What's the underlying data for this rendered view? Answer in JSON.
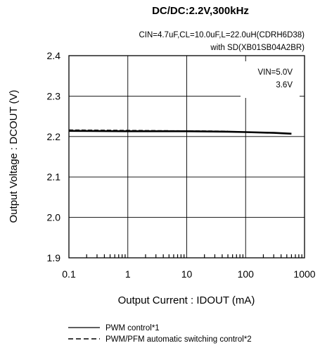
{
  "chart_data": {
    "type": "line",
    "title": "DC/DC:2.2V,300kHz",
    "subtitle_lines": [
      "CIN=4.7uF,CL=10.0uF,L=22.0uH(CDRH6D38)",
      "with SD(XB01SB04A2BR)"
    ],
    "xlabel": "Output Current : IDOUT (mA)",
    "ylabel": "Output Voltage : DCOUT (V)",
    "x_scale": "log",
    "xlim": [
      0.1,
      1000
    ],
    "ylim": [
      1.9,
      2.4
    ],
    "x_ticks": [
      0.1,
      1,
      10,
      100,
      1000
    ],
    "x_tick_labels": [
      "0.1",
      "1",
      "10",
      "100",
      "1000"
    ],
    "y_ticks": [
      1.9,
      2.0,
      2.1,
      2.2,
      2.3,
      2.4
    ],
    "y_tick_labels": [
      "1.9",
      "2.0",
      "2.1",
      "2.2",
      "2.3",
      "2.4"
    ],
    "grid": true,
    "annotation_lines": [
      "VIN=5.0V",
      "3.6V"
    ],
    "series": [
      {
        "name": "PWM control*1",
        "style": "solid",
        "x": [
          0.1,
          1,
          10,
          50,
          100,
          300,
          600
        ],
        "y": [
          2.214,
          2.213,
          2.213,
          2.212,
          2.211,
          2.209,
          2.207
        ]
      },
      {
        "name": "PWM/PFM automatic switching control*2",
        "style": "dashed",
        "x": [
          0.1,
          1,
          10,
          50
        ],
        "y": [
          2.216,
          2.215,
          2.214,
          2.213
        ]
      }
    ]
  },
  "legend": {
    "items": [
      {
        "label": "PWM control*1",
        "style": "solid"
      },
      {
        "label": "PWM/PFM automatic switching control*2",
        "style": "dashed"
      }
    ]
  },
  "colors": {
    "line": "#000000",
    "grid": "#000000",
    "background": "#ffffff"
  }
}
